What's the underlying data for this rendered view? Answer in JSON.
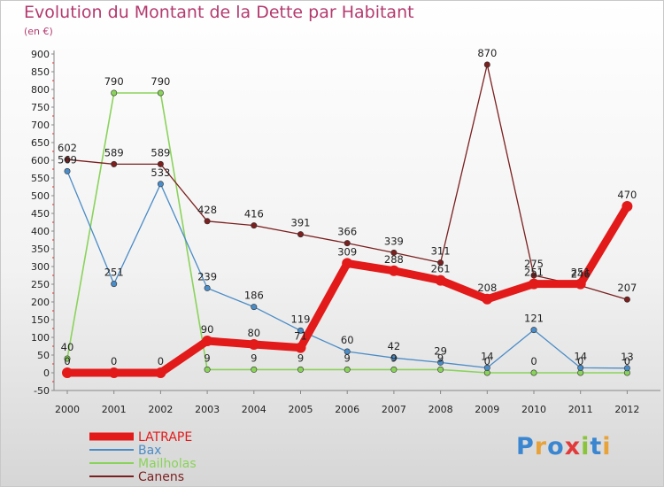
{
  "chart_data": {
    "type": "line",
    "title": "Evolution du Montant de la Dette par Habitant",
    "subtitle": "(en €)",
    "xlabel": "",
    "ylabel": "",
    "categories": [
      "2000",
      "2001",
      "2002",
      "2003",
      "2004",
      "2005",
      "2006",
      "2007",
      "2008",
      "2009",
      "2010",
      "2011",
      "2012"
    ],
    "ylim": [
      -50,
      900
    ],
    "yticks": [
      -50,
      0,
      50,
      100,
      150,
      200,
      250,
      300,
      350,
      400,
      450,
      500,
      550,
      600,
      650,
      700,
      750,
      800,
      850,
      900
    ],
    "grid": false,
    "legend_position": "bottom-left",
    "series": [
      {
        "name": "LATRAPE",
        "color": "#e31a1a",
        "values": [
          0,
          0,
          0,
          90,
          80,
          71,
          309,
          288,
          261,
          208,
          251,
          251,
          470
        ]
      },
      {
        "name": "Bax",
        "color": "#4a8cc7",
        "values": [
          569,
          251,
          533,
          239,
          186,
          119,
          60,
          42,
          29,
          14,
          121,
          14,
          13
        ]
      },
      {
        "name": "Mailholas",
        "color": "#8ad35a",
        "values": [
          40,
          790,
          790,
          9,
          9,
          9,
          9,
          9,
          9,
          0,
          0,
          0,
          0
        ]
      },
      {
        "name": "Canens",
        "color": "#7b1f1f",
        "values": [
          602,
          589,
          589,
          428,
          416,
          391,
          366,
          339,
          311,
          870,
          275,
          246,
          207
        ]
      }
    ]
  },
  "brand": {
    "text": "Proxiti",
    "letters": [
      {
        "ch": "P",
        "color": "#3a86d0"
      },
      {
        "ch": "r",
        "color": "#e8a23a"
      },
      {
        "ch": "o",
        "color": "#3a86d0"
      },
      {
        "ch": "x",
        "color": "#e23a3a"
      },
      {
        "ch": "i",
        "color": "#8ac43a"
      },
      {
        "ch": "t",
        "color": "#3a86d0"
      },
      {
        "ch": "i",
        "color": "#e8a23a"
      }
    ]
  }
}
